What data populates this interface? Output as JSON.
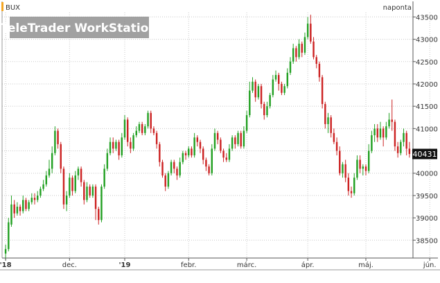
{
  "chart_data": {
    "type": "candlestick",
    "instrument": "BUX",
    "interval_label": "naponta",
    "watermark": "TeleTrader WorkStation",
    "last_value_label": "40431",
    "last_value": 40431,
    "ylim": [
      38100,
      43600
    ],
    "y_ticks": [
      38500,
      39000,
      39500,
      40000,
      40500,
      41000,
      41500,
      42000,
      42500,
      43000,
      43500
    ],
    "x_tick_labels": [
      "'18",
      "dec.",
      "'19",
      "febr.",
      "márc.",
      "ápr.",
      "máj.",
      "jún."
    ],
    "x_tick_index": [
      0,
      22,
      41,
      63,
      83,
      104,
      124,
      146
    ],
    "colors": {
      "up": "#22a022",
      "down": "#cc2222",
      "grid": "#c8c8c8",
      "accent": "#f5a623",
      "interval": "#2a9a2a"
    },
    "candles": [
      [
        38200,
        38300,
        38050,
        38400
      ],
      [
        38300,
        38900,
        38250,
        39000
      ],
      [
        38850,
        39300,
        38800,
        39500
      ],
      [
        39300,
        39100,
        39000,
        39400
      ],
      [
        39100,
        39250,
        39050,
        39350
      ],
      [
        39250,
        39150,
        39050,
        39300
      ],
      [
        39150,
        39400,
        39100,
        39500
      ],
      [
        39400,
        39200,
        39150,
        39450
      ],
      [
        39200,
        39350,
        39150,
        39400
      ],
      [
        39350,
        39450,
        39300,
        39550
      ],
      [
        39450,
        39400,
        39300,
        39550
      ],
      [
        39400,
        39500,
        39350,
        39600
      ],
      [
        39500,
        39650,
        39450,
        39700
      ],
      [
        39650,
        39750,
        39600,
        39850
      ],
      [
        39750,
        39950,
        39700,
        40050
      ],
      [
        39950,
        40100,
        39900,
        40300
      ],
      [
        40100,
        40450,
        40000,
        40600
      ],
      [
        40450,
        40950,
        40400,
        41050
      ],
      [
        40950,
        40650,
        40550,
        41000
      ],
      [
        40650,
        40100,
        40000,
        40700
      ],
      [
        40100,
        39300,
        39200,
        40150
      ],
      [
        39300,
        39500,
        39150,
        39600
      ],
      [
        39500,
        39900,
        39450,
        40000
      ],
      [
        39900,
        39600,
        39500,
        39950
      ],
      [
        39600,
        39950,
        39550,
        40050
      ],
      [
        39950,
        40100,
        39850,
        40150
      ],
      [
        40100,
        39800,
        39700,
        40150
      ],
      [
        39800,
        39400,
        39300,
        39850
      ],
      [
        39400,
        39700,
        39350,
        39800
      ],
      [
        39700,
        39500,
        39450,
        39750
      ],
      [
        39500,
        39700,
        39450,
        39750
      ],
      [
        39700,
        39200,
        38950,
        39750
      ],
      [
        39200,
        38950,
        38850,
        39250
      ],
      [
        38950,
        39700,
        38900,
        39750
      ],
      [
        39700,
        40100,
        39650,
        40200
      ],
      [
        40100,
        40450,
        40050,
        40550
      ],
      [
        40450,
        40700,
        40400,
        40800
      ],
      [
        40700,
        40550,
        40450,
        40800
      ],
      [
        40550,
        40700,
        40500,
        40750
      ],
      [
        40700,
        40400,
        40300,
        40750
      ],
      [
        40400,
        40800,
        40350,
        40900
      ],
      [
        40800,
        41200,
        40750,
        41300
      ],
      [
        41200,
        40700,
        40600,
        41250
      ],
      [
        40700,
        40550,
        40450,
        40800
      ],
      [
        40550,
        40850,
        40500,
        40900
      ],
      [
        40850,
        40950,
        40800,
        41050
      ],
      [
        40950,
        41100,
        40900,
        41150
      ],
      [
        41100,
        40900,
        40850,
        41150
      ],
      [
        40900,
        41050,
        40850,
        41100
      ],
      [
        41050,
        41350,
        41000,
        41400
      ],
      [
        41350,
        41000,
        40900,
        41400
      ],
      [
        41000,
        40900,
        40850,
        41050
      ],
      [
        40900,
        40650,
        40550,
        40950
      ],
      [
        40650,
        40250,
        40150,
        40700
      ],
      [
        40250,
        39950,
        39900,
        40300
      ],
      [
        39950,
        39700,
        39600,
        40000
      ],
      [
        39700,
        40000,
        39650,
        40050
      ],
      [
        40000,
        40250,
        39950,
        40300
      ],
      [
        40250,
        40100,
        40000,
        40300
      ],
      [
        40100,
        39950,
        39850,
        40150
      ],
      [
        39950,
        40250,
        39900,
        40350
      ],
      [
        40250,
        40450,
        40200,
        40500
      ],
      [
        40450,
        40400,
        40300,
        40500
      ],
      [
        40400,
        40550,
        40350,
        40600
      ],
      [
        40550,
        40400,
        40350,
        40600
      ],
      [
        40400,
        40800,
        40350,
        40900
      ],
      [
        40800,
        40700,
        40600,
        40850
      ],
      [
        40700,
        40550,
        40450,
        40750
      ],
      [
        40550,
        40300,
        40200,
        40600
      ],
      [
        40300,
        40150,
        40050,
        40350
      ],
      [
        40150,
        40000,
        39950,
        40200
      ],
      [
        40000,
        40550,
        39950,
        40650
      ],
      [
        40550,
        40900,
        40500,
        41000
      ],
      [
        40900,
        40750,
        40650,
        40950
      ],
      [
        40750,
        40500,
        40450,
        40800
      ],
      [
        40500,
        40350,
        40250,
        40550
      ],
      [
        40350,
        40300,
        40250,
        40450
      ],
      [
        40300,
        40550,
        40250,
        40650
      ],
      [
        40550,
        40800,
        40500,
        40850
      ],
      [
        40800,
        40650,
        40550,
        40850
      ],
      [
        40650,
        40900,
        40600,
        40950
      ],
      [
        40900,
        40600,
        40550,
        40950
      ],
      [
        40600,
        40950,
        40550,
        41050
      ],
      [
        40950,
        41300,
        40900,
        41400
      ],
      [
        41300,
        41850,
        41250,
        42050
      ],
      [
        41850,
        42050,
        41800,
        42150
      ],
      [
        42050,
        41700,
        41600,
        42100
      ],
      [
        41700,
        41950,
        41650,
        42000
      ],
      [
        41950,
        41550,
        41450,
        42000
      ],
      [
        41550,
        41300,
        41200,
        41600
      ],
      [
        41300,
        41500,
        41250,
        41600
      ],
      [
        41500,
        41750,
        41450,
        41800
      ],
      [
        41750,
        42100,
        41700,
        42200
      ],
      [
        42100,
        42200,
        42050,
        42300
      ],
      [
        42200,
        42000,
        41850,
        42250
      ],
      [
        42000,
        41800,
        41750,
        42050
      ],
      [
        41800,
        41950,
        41750,
        42000
      ],
      [
        41950,
        42250,
        41900,
        42350
      ],
      [
        42250,
        42500,
        42200,
        42600
      ],
      [
        42500,
        42800,
        42450,
        42900
      ],
      [
        42800,
        42600,
        42500,
        42850
      ],
      [
        42600,
        42900,
        42550,
        43000
      ],
      [
        42900,
        42700,
        42600,
        42950
      ],
      [
        42700,
        43050,
        42650,
        43150
      ],
      [
        43050,
        43350,
        43000,
        43500
      ],
      [
        43350,
        42950,
        42900,
        43550
      ],
      [
        42950,
        42600,
        42550,
        43050
      ],
      [
        42600,
        42450,
        42350,
        42650
      ],
      [
        42450,
        42150,
        42050,
        42500
      ],
      [
        42150,
        41550,
        41450,
        42200
      ],
      [
        41550,
        41100,
        41000,
        41600
      ],
      [
        41100,
        41250,
        40900,
        41350
      ],
      [
        41250,
        40900,
        40800,
        41300
      ],
      [
        40900,
        40700,
        40650,
        41000
      ],
      [
        40700,
        40500,
        40400,
        40800
      ],
      [
        40500,
        40000,
        39950,
        40600
      ],
      [
        40000,
        40200,
        39900,
        40250
      ],
      [
        40200,
        39900,
        39800,
        40300
      ],
      [
        39900,
        39600,
        39500,
        40000
      ],
      [
        39600,
        39550,
        39450,
        39700
      ],
      [
        39550,
        39900,
        39500,
        40000
      ],
      [
        39900,
        40300,
        39850,
        40400
      ],
      [
        40300,
        40100,
        40000,
        40400
      ],
      [
        40100,
        40150,
        39950,
        40200
      ],
      [
        40150,
        40050,
        39950,
        40200
      ],
      [
        40050,
        40500,
        40000,
        40650
      ],
      [
        40500,
        40850,
        40450,
        40950
      ],
      [
        40850,
        41000,
        40700,
        41100
      ],
      [
        41000,
        40800,
        40700,
        41100
      ],
      [
        40800,
        41000,
        40750,
        41150
      ],
      [
        41000,
        40800,
        40600,
        41050
      ],
      [
        40800,
        41050,
        40750,
        41150
      ],
      [
        41050,
        41200,
        41000,
        41350
      ],
      [
        41200,
        41150,
        40950,
        41650
      ],
      [
        41150,
        40600,
        40500,
        41200
      ],
      [
        40600,
        40450,
        40350,
        40700
      ],
      [
        40450,
        40700,
        40400,
        40750
      ],
      [
        40700,
        40900,
        40600,
        41000
      ],
      [
        40900,
        40550,
        40400,
        40950
      ],
      [
        40550,
        40431,
        40350,
        40700
      ]
    ]
  }
}
